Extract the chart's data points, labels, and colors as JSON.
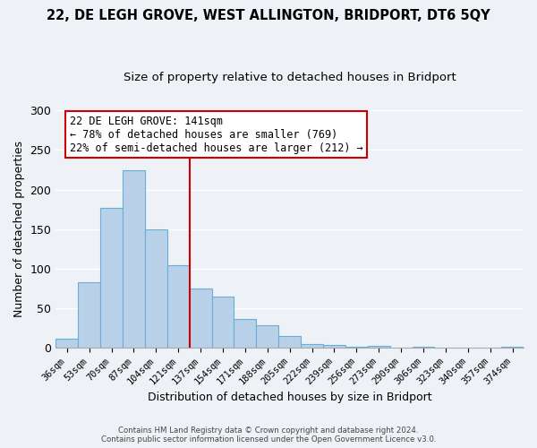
{
  "title": "22, DE LEGH GROVE, WEST ALLINGTON, BRIDPORT, DT6 5QY",
  "subtitle": "Size of property relative to detached houses in Bridport",
  "xlabel": "Distribution of detached houses by size in Bridport",
  "ylabel": "Number of detached properties",
  "categories": [
    "36sqm",
    "53sqm",
    "70sqm",
    "87sqm",
    "104sqm",
    "121sqm",
    "137sqm",
    "154sqm",
    "171sqm",
    "188sqm",
    "205sqm",
    "222sqm",
    "239sqm",
    "256sqm",
    "273sqm",
    "290sqm",
    "306sqm",
    "323sqm",
    "340sqm",
    "357sqm",
    "374sqm"
  ],
  "values": [
    11,
    83,
    177,
    224,
    150,
    104,
    75,
    65,
    36,
    29,
    15,
    5,
    4,
    1,
    2,
    0,
    1,
    0,
    0,
    0,
    1
  ],
  "bar_color": "#b8d0e8",
  "bar_edge_color": "#6aaed6",
  "vline_color": "#cc0000",
  "vline_index": 6,
  "annotation_title": "22 DE LEGH GROVE: 141sqm",
  "annotation_line1": "← 78% of detached houses are smaller (769)",
  "annotation_line2": "22% of semi-detached houses are larger (212) →",
  "annotation_box_edge": "#cc0000",
  "ylim": [
    0,
    300
  ],
  "yticks": [
    0,
    50,
    100,
    150,
    200,
    250,
    300
  ],
  "footer1": "Contains HM Land Registry data © Crown copyright and database right 2024.",
  "footer2": "Contains public sector information licensed under the Open Government Licence v3.0.",
  "background_color": "#eef2f7",
  "title_fontsize": 10.5,
  "subtitle_fontsize": 9.5,
  "tick_fontsize": 7.5,
  "ylabel_fontsize": 9,
  "xlabel_fontsize": 9
}
